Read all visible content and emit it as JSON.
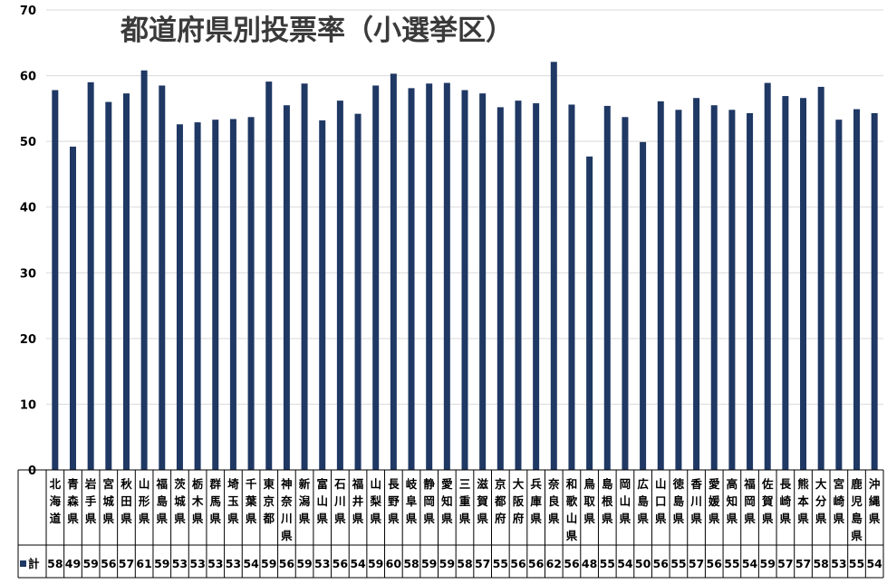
{
  "chart_data": {
    "type": "bar",
    "title": "都道府県別投票率（小選挙区）",
    "xlabel": "",
    "ylabel": "",
    "ylim": [
      0,
      70
    ],
    "yticks": [
      0,
      10,
      20,
      30,
      40,
      50,
      60,
      70
    ],
    "grid": true,
    "legend": "bottom-left",
    "colors": {
      "bar": "#1f3864",
      "grid": "#d9d9d9",
      "axis": "#000000",
      "title": "#3a3a3a"
    },
    "categories": [
      "北海道",
      "青森県",
      "岩手県",
      "宮城県",
      "秋田県",
      "山形県",
      "福島県",
      "茨城県",
      "栃木県",
      "群馬県",
      "埼玉県",
      "千葉県",
      "東京都",
      "神奈川県",
      "新潟県",
      "富山県",
      "石川県",
      "福井県",
      "山梨県",
      "長野県",
      "岐阜県",
      "静岡県",
      "愛知県",
      "三重県",
      "滋賀県",
      "京都府",
      "大阪府",
      "兵庫県",
      "奈良県",
      "和歌山県",
      "鳥取県",
      "島根県",
      "岡山県",
      "広島県",
      "山口県",
      "徳島県",
      "香川県",
      "愛媛県",
      "高知県",
      "福岡県",
      "佐賀県",
      "長崎県",
      "熊本県",
      "大分県",
      "宮崎県",
      "鹿児島県",
      "沖縄県"
    ],
    "series": [
      {
        "name": "計",
        "values": [
          57.8,
          49.2,
          59.0,
          56.0,
          57.3,
          60.8,
          58.5,
          52.6,
          52.9,
          53.3,
          53.4,
          53.7,
          59.1,
          55.5,
          58.8,
          53.2,
          56.2,
          54.2,
          58.5,
          60.3,
          58.1,
          58.8,
          58.9,
          57.8,
          57.3,
          55.2,
          56.2,
          55.8,
          62.1,
          55.6,
          47.7,
          55.4,
          53.7,
          49.9,
          56.1,
          54.8,
          56.6,
          55.5,
          54.8,
          54.3,
          58.9,
          56.9,
          56.6,
          58.3,
          53.3,
          54.9,
          54.3
        ],
        "labels": [
          "58",
          "49",
          "59",
          "56",
          "57",
          "61",
          "59",
          "53",
          "53",
          "53",
          "53",
          "54",
          "59",
          "56",
          "59",
          "53",
          "56",
          "54",
          "59",
          "60",
          "58",
          "59",
          "59",
          "58",
          "57",
          "55",
          "56",
          "56",
          "62",
          "56",
          "48",
          "55",
          "54",
          "50",
          "56",
          "55",
          "57",
          "56",
          "55",
          "54",
          "59",
          "57",
          "57",
          "58",
          "53",
          "55",
          "54"
        ]
      }
    ]
  }
}
